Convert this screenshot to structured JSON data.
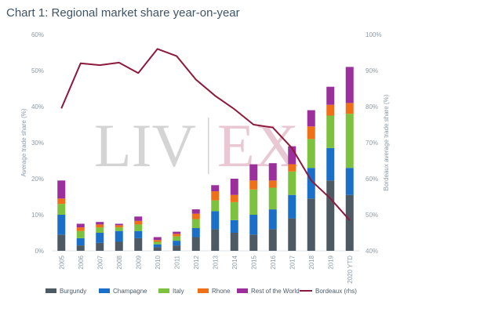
{
  "title": "Chart 1: Regional market share year-on-year",
  "watermark": {
    "left": "LIV",
    "right": "EX"
  },
  "colors": {
    "Burgundy": "#4d5a64",
    "Champagne": "#1a6fc8",
    "Italy": "#7cc23e",
    "Rhone": "#f07018",
    "Rest of the World": "#9b2f9b",
    "Bordeaux (rhs)": "#8b1a3c",
    "watermark_grey": "#d4d4d4",
    "watermark_pink": "#e9c8d3",
    "axis_text": "#8a9aa8"
  },
  "chart_data": {
    "type": "bar",
    "stacked": true,
    "categories": [
      "2005",
      "2006",
      "2007",
      "2008",
      "2009",
      "2010",
      "2011",
      "2012",
      "2013",
      "2014",
      "2015",
      "2016",
      "2017",
      "2018",
      "2019",
      "2020 YTD"
    ],
    "series": [
      {
        "name": "Burgundy",
        "values": [
          4.5,
          1.5,
          2.2,
          2.5,
          3.5,
          1.0,
          1.5,
          3.8,
          6.0,
          5.0,
          4.5,
          6.0,
          9.0,
          14.5,
          19.5,
          15.5
        ]
      },
      {
        "name": "Champagne",
        "values": [
          5.5,
          2.0,
          2.8,
          3.0,
          2.0,
          0.8,
          1.3,
          2.5,
          5.0,
          3.5,
          5.5,
          5.5,
          6.5,
          8.5,
          9.0,
          7.5
        ]
      },
      {
        "name": "Italy",
        "values": [
          3.0,
          2.0,
          1.5,
          1.0,
          1.8,
          0.7,
          1.2,
          2.5,
          3.0,
          5.0,
          7.0,
          6.0,
          6.5,
          8.0,
          9.0,
          15.0
        ]
      },
      {
        "name": "Rhone",
        "values": [
          1.5,
          1.0,
          0.8,
          0.6,
          1.0,
          0.5,
          0.7,
          1.5,
          2.5,
          2.0,
          2.5,
          2.0,
          2.0,
          3.5,
          3.0,
          3.0
        ]
      },
      {
        "name": "Rest of the World",
        "values": [
          5.0,
          1.0,
          0.7,
          0.4,
          1.2,
          0.8,
          0.6,
          1.2,
          1.7,
          4.5,
          4.5,
          4.8,
          5.0,
          4.5,
          5.0,
          10.0
        ]
      }
    ],
    "line_series": {
      "name": "Bordeaux (rhs)",
      "axis": "right",
      "values": [
        79.5,
        92.0,
        91.5,
        92.2,
        89.3,
        96.0,
        94.0,
        87.5,
        83.0,
        79.3,
        75.0,
        74.2,
        68.5,
        59.5,
        54.5,
        48.5
      ]
    },
    "xlabel": "",
    "ylabel": "Average trade share (%)",
    "y2label": "Bordeaux average trade share (%)",
    "ylim": [
      0,
      60
    ],
    "y2lim": [
      40,
      100
    ],
    "yticks": [
      0,
      10,
      20,
      30,
      40,
      50,
      60
    ],
    "ytick_labels": [
      "0%",
      "10%",
      "20%",
      "30%",
      "40%",
      "50%",
      "60%"
    ],
    "y2ticks": [
      40,
      50,
      60,
      70,
      80,
      90,
      100
    ],
    "y2tick_labels": [
      "40%",
      "50%",
      "60%",
      "70%",
      "80%",
      "90%",
      "100%"
    ],
    "grid": false,
    "legend_position": "bottom"
  }
}
